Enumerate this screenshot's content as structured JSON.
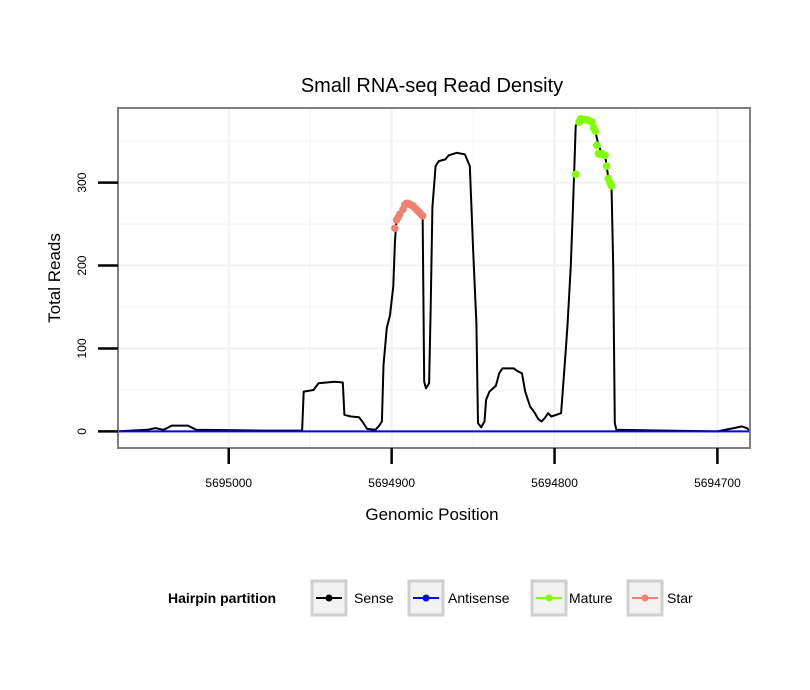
{
  "chart_data": {
    "type": "line",
    "title": "Small RNA-seq Read Density",
    "xlabel": "Genomic Position",
    "ylabel": "Total Reads",
    "x_reversed": true,
    "xlim": [
      5695068,
      5694680
    ],
    "ylim": [
      -20,
      390
    ],
    "x_ticks": [
      5695000,
      5694900,
      5694800,
      5694700
    ],
    "x_tick_labels": [
      "5695000",
      "5694900",
      "5694800",
      "5694700"
    ],
    "y_ticks": [
      0,
      100,
      200,
      300
    ],
    "y_tick_labels": [
      "0",
      "100",
      "200",
      "300"
    ],
    "grid": true,
    "legend": {
      "title": "Hairpin partition",
      "position": "bottom",
      "entries": [
        {
          "label": "Sense",
          "color": "#000000"
        },
        {
          "label": "Antisense",
          "color": "#0000ff"
        },
        {
          "label": "Mature",
          "color": "#7fff00"
        },
        {
          "label": "Star",
          "color": "#f08070"
        }
      ]
    },
    "series": [
      {
        "name": "Sense",
        "color": "#000000",
        "style": "line",
        "points": [
          [
            5695068,
            0
          ],
          [
            5695060,
            1
          ],
          [
            5695050,
            2
          ],
          [
            5695045,
            4
          ],
          [
            5695040,
            2
          ],
          [
            5695035,
            7
          ],
          [
            5695025,
            7
          ],
          [
            5695020,
            2
          ],
          [
            5694980,
            1
          ],
          [
            5694955,
            1
          ],
          [
            5694954,
            48
          ],
          [
            5694948,
            50
          ],
          [
            5694945,
            58
          ],
          [
            5694935,
            60
          ],
          [
            5694930,
            59
          ],
          [
            5694929,
            20
          ],
          [
            5694925,
            18
          ],
          [
            5694920,
            17
          ],
          [
            5694918,
            12
          ],
          [
            5694915,
            3
          ],
          [
            5694910,
            2
          ],
          [
            5694908,
            6
          ],
          [
            5694906,
            12
          ],
          [
            5694905,
            80
          ],
          [
            5694903,
            125
          ],
          [
            5694901,
            140
          ],
          [
            5694899,
            175
          ],
          [
            5694898,
            228
          ],
          [
            5694897,
            255
          ],
          [
            5694895,
            262
          ],
          [
            5694893,
            273
          ],
          [
            5694890,
            275
          ],
          [
            5694887,
            272
          ],
          [
            5694885,
            268
          ],
          [
            5694882,
            262
          ],
          [
            5694881,
            264
          ],
          [
            5694880,
            60
          ],
          [
            5694879,
            52
          ],
          [
            5694877,
            58
          ],
          [
            5694876,
            150
          ],
          [
            5694875,
            270
          ],
          [
            5694873,
            320
          ],
          [
            5694871,
            326
          ],
          [
            5694867,
            328
          ],
          [
            5694865,
            333
          ],
          [
            5694860,
            336
          ],
          [
            5694855,
            334
          ],
          [
            5694852,
            320
          ],
          [
            5694850,
            220
          ],
          [
            5694848,
            130
          ],
          [
            5694847,
            10
          ],
          [
            5694845,
            5
          ],
          [
            5694843,
            12
          ],
          [
            5694842,
            38
          ],
          [
            5694840,
            48
          ],
          [
            5694836,
            55
          ],
          [
            5694834,
            70
          ],
          [
            5694832,
            76
          ],
          [
            5694825,
            76
          ],
          [
            5694823,
            73
          ],
          [
            5694820,
            70
          ],
          [
            5694818,
            48
          ],
          [
            5694815,
            30
          ],
          [
            5694812,
            22
          ],
          [
            5694810,
            15
          ],
          [
            5694808,
            12
          ],
          [
            5694806,
            16
          ],
          [
            5694804,
            22
          ],
          [
            5694802,
            18
          ],
          [
            5694796,
            22
          ],
          [
            5694793,
            100
          ],
          [
            5694792,
            130
          ],
          [
            5694790,
            200
          ],
          [
            5694789,
            255
          ],
          [
            5694788,
            310
          ],
          [
            5694787,
            368
          ],
          [
            5694785,
            377
          ],
          [
            5694780,
            376
          ],
          [
            5694777,
            370
          ],
          [
            5694775,
            362
          ],
          [
            5694773,
            345
          ],
          [
            5694771,
            335
          ],
          [
            5694769,
            333
          ],
          [
            5694768,
            320
          ],
          [
            5694767,
            305
          ],
          [
            5694766,
            300
          ],
          [
            5694765,
            296
          ],
          [
            5694764,
            200
          ],
          [
            5694763,
            10
          ],
          [
            5694762,
            2
          ],
          [
            5694700,
            0
          ],
          [
            5694690,
            4
          ],
          [
            5694685,
            6
          ],
          [
            5694682,
            4
          ],
          [
            5694680,
            1
          ]
        ]
      },
      {
        "name": "Antisense",
        "color": "#0000ff",
        "style": "line",
        "points": [
          [
            5695068,
            0
          ],
          [
            5694680,
            0
          ]
        ]
      },
      {
        "name": "Mature",
        "color": "#7fff00",
        "style": "points",
        "points": [
          [
            5694787,
            310
          ],
          [
            5694785,
            373
          ],
          [
            5694784,
            377
          ],
          [
            5694782,
            376
          ],
          [
            5694780,
            376
          ],
          [
            5694779,
            375
          ],
          [
            5694777,
            373
          ],
          [
            5694776,
            366
          ],
          [
            5694775,
            362
          ],
          [
            5694774,
            345
          ],
          [
            5694773,
            335
          ],
          [
            5694772,
            334
          ],
          [
            5694771,
            335
          ],
          [
            5694769,
            333
          ],
          [
            5694768,
            320
          ],
          [
            5694767,
            305
          ],
          [
            5694766,
            300
          ],
          [
            5694765,
            296
          ]
        ]
      },
      {
        "name": "Star",
        "color": "#f08070",
        "style": "points",
        "points": [
          [
            5694898,
            245
          ],
          [
            5694897,
            255
          ],
          [
            5694896,
            258
          ],
          [
            5694895,
            262
          ],
          [
            5694893,
            268
          ],
          [
            5694892,
            273
          ],
          [
            5694891,
            275
          ],
          [
            5694890,
            275
          ],
          [
            5694889,
            274
          ],
          [
            5694888,
            273
          ],
          [
            5694887,
            272
          ],
          [
            5694886,
            270
          ],
          [
            5694885,
            268
          ],
          [
            5694884,
            266
          ],
          [
            5694883,
            264
          ],
          [
            5694882,
            262
          ],
          [
            5694881,
            260
          ]
        ]
      }
    ]
  }
}
